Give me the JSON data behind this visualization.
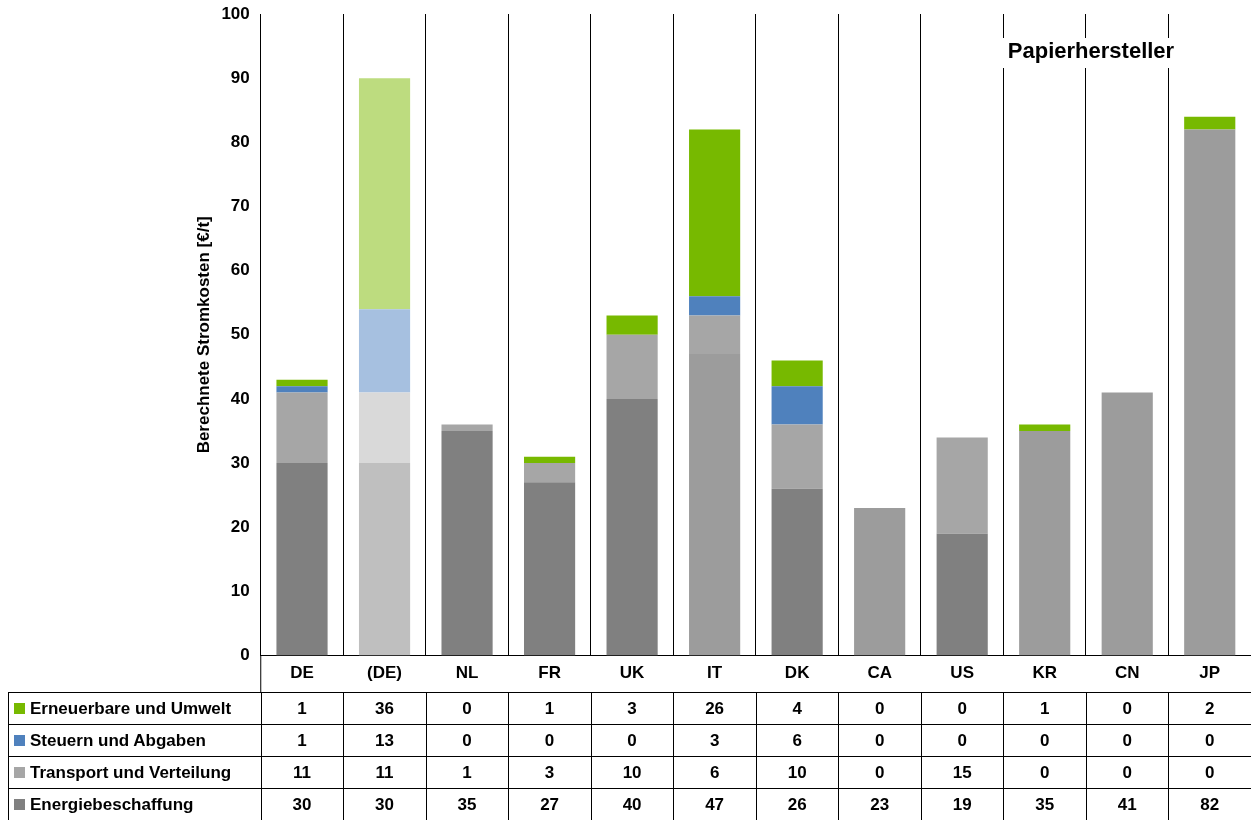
{
  "chart_data": {
    "type": "bar",
    "title": "Papierhersteller",
    "ylabel": "Berechnete Stromkosten [€/t]",
    "stacked": true,
    "categories": [
      "DE",
      "(DE)",
      "NL",
      "FR",
      "UK",
      "IT",
      "DK",
      "CA",
      "US",
      "KR",
      "CN",
      "JP"
    ],
    "series": [
      {
        "name": "Energiebeschaffung",
        "color": "#808080",
        "colors": [
          "#808080",
          "#bfbfbf",
          "#808080",
          "#808080",
          "#808080",
          "#9c9c9c",
          "#808080",
          "#9c9c9c",
          "#808080",
          "#9c9c9c",
          "#9c9c9c",
          "#9c9c9c"
        ],
        "values": [
          30,
          30,
          35,
          27,
          40,
          47,
          26,
          23,
          19,
          35,
          41,
          82
        ]
      },
      {
        "name": "Transport und Verteilung",
        "color": "#a6a6a6",
        "colors": [
          "#a6a6a6",
          "#d9d9d9",
          "#a6a6a6",
          "#a6a6a6",
          "#a6a6a6",
          "#a6a6a6",
          "#a6a6a6",
          "#a6a6a6",
          "#a6a6a6",
          "#a6a6a6",
          "#a6a6a6",
          "#a6a6a6"
        ],
        "values": [
          11,
          11,
          1,
          3,
          10,
          6,
          10,
          0,
          15,
          0,
          0,
          0
        ]
      },
      {
        "name": "Steuern und Abgaben",
        "color": "#4f81bd",
        "colors": [
          "#4f81bd",
          "#a6c0e0",
          "#4f81bd",
          "#4f81bd",
          "#4f81bd",
          "#4f81bd",
          "#4f81bd",
          "#4f81bd",
          "#4f81bd",
          "#4f81bd",
          "#4f81bd",
          "#4f81bd"
        ],
        "values": [
          1,
          13,
          0,
          0,
          0,
          3,
          6,
          0,
          0,
          0,
          0,
          0
        ]
      },
      {
        "name": "Erneuerbare und Umwelt",
        "color": "#77b900",
        "colors": [
          "#77b900",
          "#bddc7f",
          "#77b900",
          "#77b900",
          "#77b900",
          "#77b900",
          "#77b900",
          "#77b900",
          "#77b900",
          "#77b900",
          "#77b900",
          "#77b900"
        ],
        "values": [
          1,
          36,
          0,
          1,
          3,
          26,
          4,
          0,
          0,
          1,
          0,
          2
        ]
      }
    ],
    "ylim": [
      0,
      100
    ],
    "yticks": [
      0,
      10,
      20,
      30,
      40,
      50,
      60,
      70,
      80,
      90,
      100
    ],
    "grid": "x",
    "legend": "bottom left",
    "data_labels": true
  }
}
